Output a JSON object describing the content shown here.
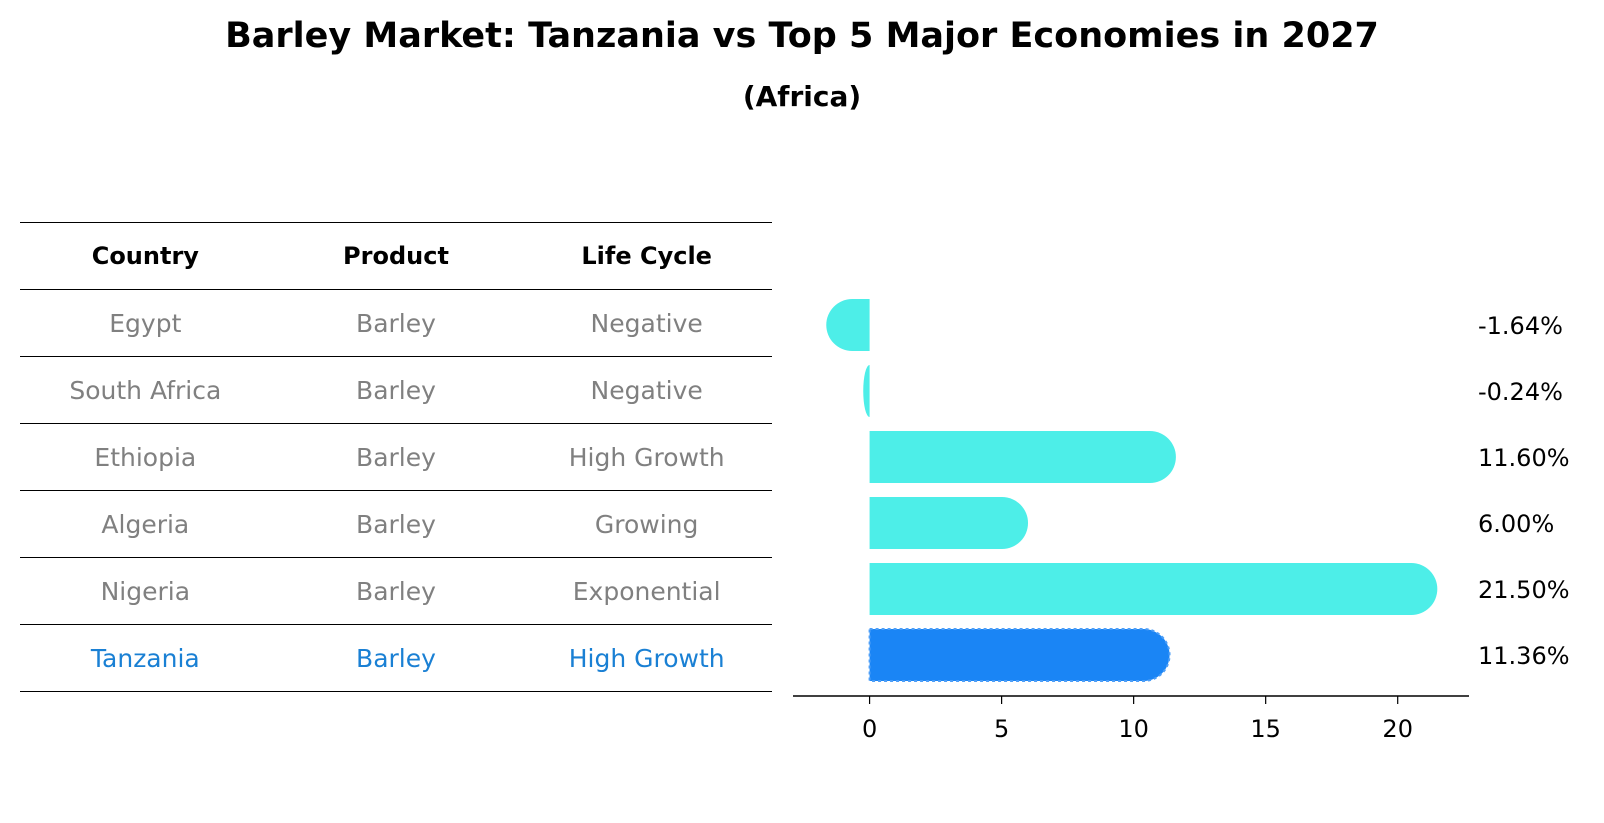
{
  "title": "Barley Market: Tanzania vs Top 5 Major Economies in 2027",
  "subtitle": "(Africa)",
  "table": {
    "headers": [
      "Country",
      "Product",
      "Life Cycle"
    ],
    "rows": [
      {
        "country": "Egypt",
        "product": "Barley",
        "life_cycle": "Negative"
      },
      {
        "country": "South Africa",
        "product": "Barley",
        "life_cycle": "Negative"
      },
      {
        "country": "Ethiopia",
        "product": "Barley",
        "life_cycle": "High Growth"
      },
      {
        "country": "Algeria",
        "product": "Barley",
        "life_cycle": "Growing"
      },
      {
        "country": "Nigeria",
        "product": "Barley",
        "life_cycle": "Exponential"
      },
      {
        "country": "Tanzania",
        "product": "Barley",
        "life_cycle": "High Growth"
      }
    ]
  },
  "colors": {
    "bar": "#4deee8",
    "highlight": "#1a85f5",
    "highlight_text": "#1a80d4",
    "muted_text": "#808080"
  },
  "chart_data": {
    "type": "bar",
    "orientation": "horizontal",
    "title": "Barley Market: Tanzania vs Top 5 Major Economies in 2027",
    "subtitle": "(Africa)",
    "categories": [
      "Egypt",
      "South Africa",
      "Ethiopia",
      "Algeria",
      "Nigeria",
      "Tanzania"
    ],
    "values": [
      -1.64,
      -0.24,
      11.6,
      6.0,
      21.5,
      11.36
    ],
    "value_labels": [
      "-1.64%",
      "-0.24%",
      "11.60%",
      "6.00%",
      "21.50%",
      "11.36%"
    ],
    "highlight_category": "Tanzania",
    "xlim": [
      -2.9,
      22.7
    ],
    "xticks": [
      0,
      5,
      10,
      15,
      20
    ],
    "xlabel": "",
    "ylabel": "",
    "grid": false
  }
}
